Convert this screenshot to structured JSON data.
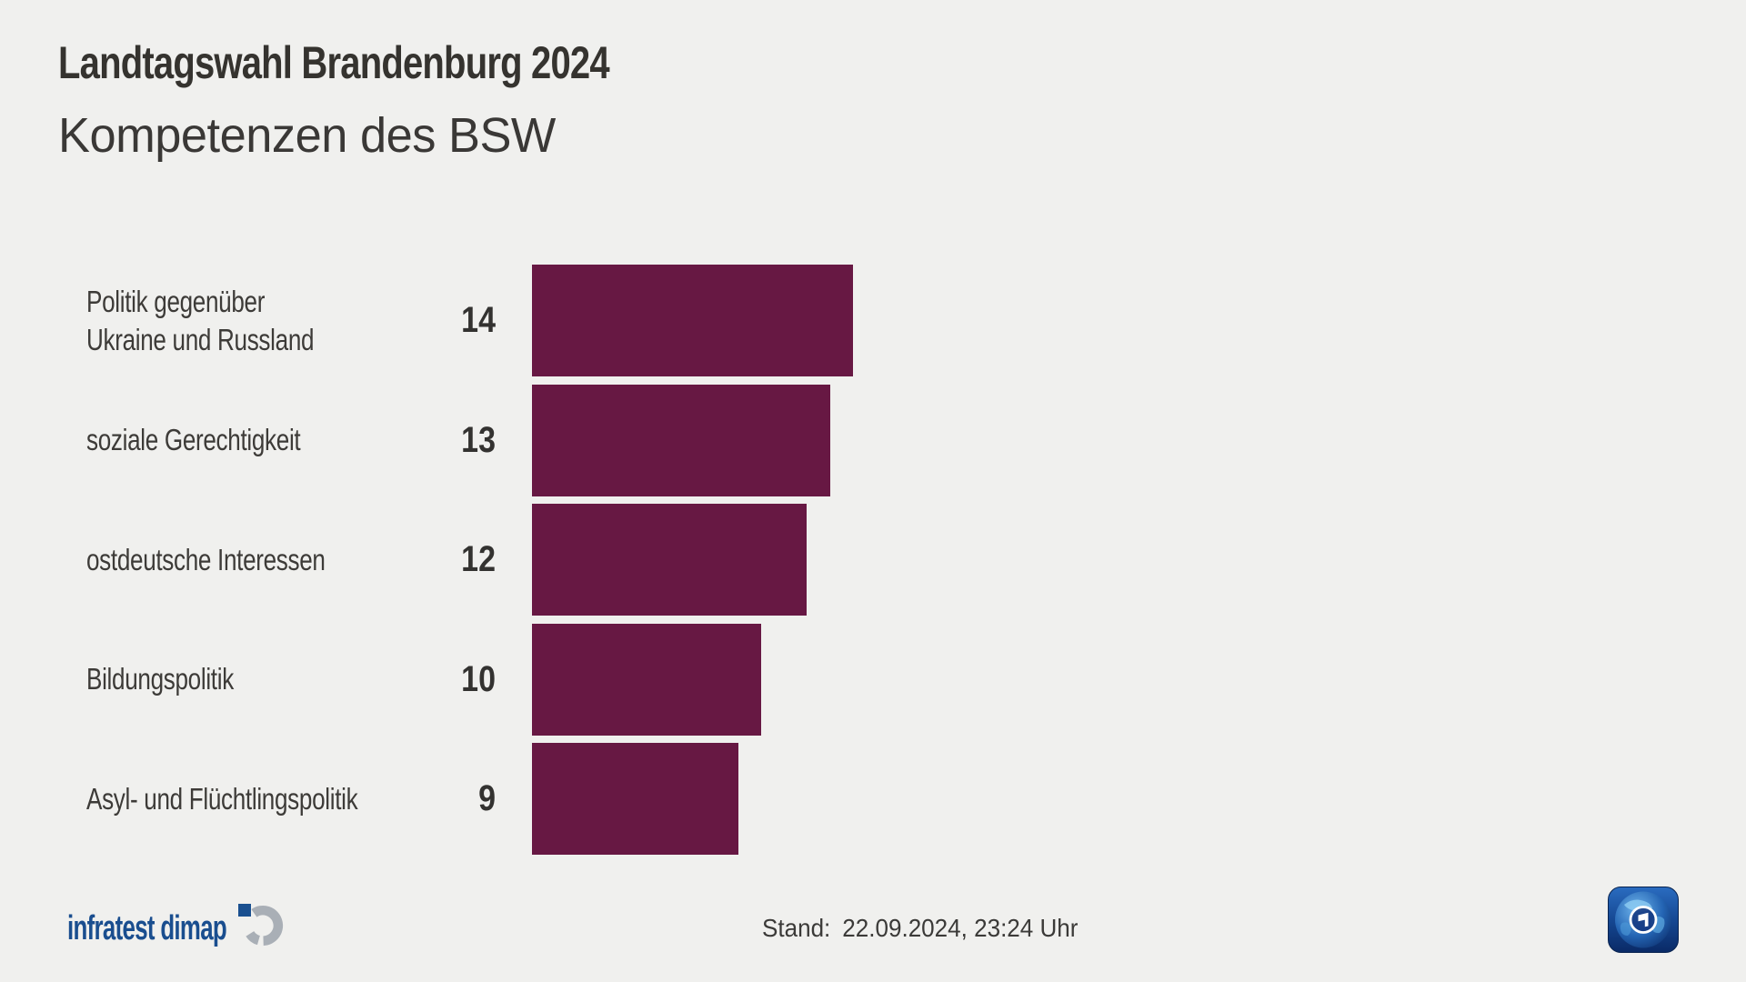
{
  "header": {
    "kicker": "Landtagswahl Brandenburg 2024",
    "title": "Kompetenzen des BSW"
  },
  "chart_data": {
    "type": "bar",
    "orientation": "horizontal",
    "title": "Kompetenzen des BSW",
    "subtitle": "Landtagswahl Brandenburg 2024",
    "categories": [
      "Politik gegenüber Ukraine und Russland",
      "soziale Gerechtigkeit",
      "ostdeutsche Interessen",
      "Bildungspolitik",
      "Asyl- und Flüchtlingspolitik"
    ],
    "values": [
      14,
      13,
      12,
      10,
      9
    ],
    "xlim": [
      0,
      14
    ],
    "grid": false,
    "legend": false,
    "bar_color": "#671843",
    "value_label_position": "left-of-bar",
    "bars": [
      {
        "label_lines": [
          "Politik gegenüber",
          "Ukraine und Russland"
        ],
        "value": 14,
        "display": "14"
      },
      {
        "label_lines": [
          "soziale Gerechtigkeit"
        ],
        "value": 13,
        "display": "13"
      },
      {
        "label_lines": [
          "ostdeutsche Interessen"
        ],
        "value": 12,
        "display": "12"
      },
      {
        "label_lines": [
          "Bildungspolitik"
        ],
        "value": 10,
        "display": "10"
      },
      {
        "label_lines": [
          "Asyl- und Flüchtlingspolitik"
        ],
        "value": 9,
        "display": "9"
      }
    ]
  },
  "footer": {
    "source": "infratest dimap",
    "stand_label": "Stand:",
    "stand_value": "22.09.2024, 23:24 Uhr"
  },
  "colors": {
    "background": "#f0f0ee",
    "bar": "#671843",
    "text_dark": "#35332f",
    "text_label": "#3d3b38",
    "infratest_blue": "#1a4e8f",
    "infratest_gray": "#a9afb6"
  }
}
